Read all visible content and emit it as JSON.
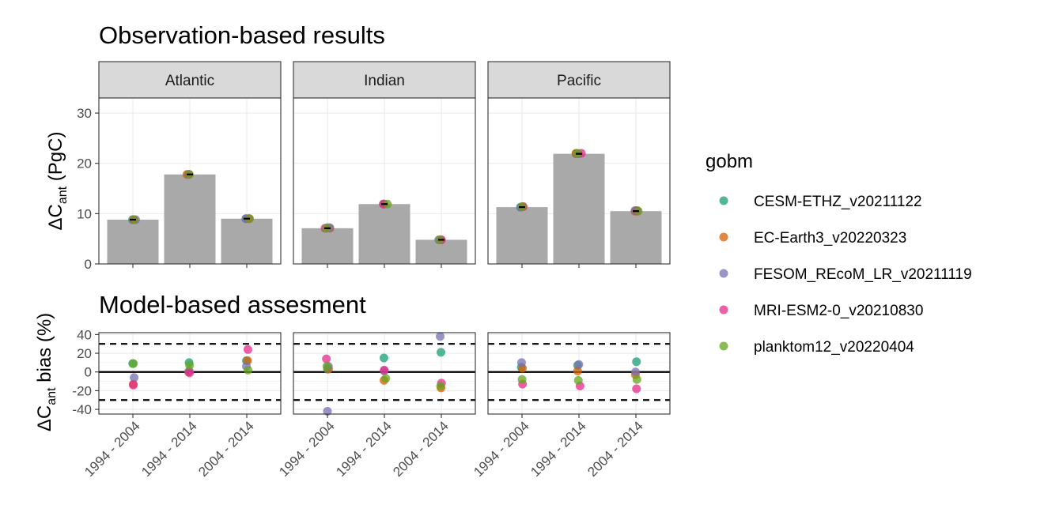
{
  "chart_data": [
    {
      "type": "bar",
      "title": "Observation-based results",
      "ylabel_main": "ΔC",
      "ylabel_sub": "ant",
      "ylabel_rest": " (PgC)",
      "ylim": [
        0,
        33
      ],
      "yticks": [
        0,
        10,
        20,
        30
      ],
      "facets": [
        "Atlantic",
        "Indian",
        "Pacific"
      ],
      "categories": [
        "1994 - 2004",
        "1994 - 2014",
        "2004 - 2014"
      ],
      "values": [
        [
          8.8,
          17.8,
          9.0
        ],
        [
          7.1,
          11.9,
          4.8
        ],
        [
          11.3,
          21.9,
          10.5
        ]
      ],
      "series": [
        {
          "name": "CESM-ETHZ_v20211122",
          "values": [
            [
              8.8,
              17.8,
              9.0
            ],
            [
              7.2,
              11.9,
              4.8
            ],
            [
              11.3,
              21.9,
              10.6
            ]
          ]
        },
        {
          "name": "EC-Earth3_v20220323",
          "values": [
            [
              8.8,
              17.8,
              9.0
            ],
            [
              7.1,
              11.9,
              4.8
            ],
            [
              11.4,
              22.0,
              10.5
            ]
          ]
        },
        {
          "name": "FESOM_REcoM_LR_v20211119",
          "values": [
            [
              8.8,
              17.8,
              9.0
            ],
            [
              7.2,
              11.9,
              4.8
            ],
            [
              11.3,
              21.9,
              10.6
            ]
          ]
        },
        {
          "name": "MRI-ESM2-0_v20210830",
          "values": [
            [
              8.8,
              17.8,
              9.0
            ],
            [
              7.1,
              11.9,
              4.8
            ],
            [
              11.4,
              22.0,
              10.5
            ]
          ]
        },
        {
          "name": "planktom12_v20220404",
          "values": [
            [
              8.8,
              17.8,
              9.0
            ],
            [
              7.1,
              11.9,
              4.8
            ],
            [
              11.4,
              22.0,
              10.5
            ]
          ]
        }
      ]
    },
    {
      "type": "scatter",
      "title": "Model-based assesment",
      "ylabel_main": "ΔC",
      "ylabel_sub": "ant",
      "ylabel_rest": " bias (%)",
      "ylim": [
        -45,
        42
      ],
      "yticks": [
        -40,
        -20,
        0,
        20,
        40
      ],
      "reference_lines": {
        "solid": 0,
        "dashed": [
          30,
          -30
        ]
      },
      "facets": [
        "Atlantic",
        "Indian",
        "Pacific"
      ],
      "categories": [
        "1994 - 2004",
        "1994 - 2014",
        "2004 - 2014"
      ],
      "series": [
        {
          "name": "CESM-ETHZ_v20211122",
          "values": [
            [
              9,
              10,
              12
            ],
            [
              3,
              15,
              21
            ],
            [
              5,
              7,
              11
            ]
          ]
        },
        {
          "name": "EC-Earth3_v20220323",
          "values": [
            [
              -13,
              0,
              12
            ],
            [
              3,
              -9,
              -17
            ],
            [
              4,
              1,
              -3
            ]
          ]
        },
        {
          "name": "FESOM_REcoM_LR_v20211119",
          "values": [
            [
              -6,
              1,
              6
            ],
            [
              6,
              1,
              38
            ],
            [
              10,
              8,
              0
            ]
          ]
        },
        {
          "name": "MRI-ESM2-0_v20210830",
          "values": [
            [
              -14,
              -1,
              24
            ],
            [
              14,
              2,
              -12
            ],
            [
              -13,
              -15,
              -18
            ]
          ]
        },
        {
          "name": "planktom12_v20220404",
          "values": [
            [
              9,
              7,
              2
            ],
            [
              6,
              -7,
              -15
            ],
            [
              -8,
              -9,
              -8
            ]
          ]
        }
      ],
      "outliers": [
        {
          "facet": "Indian",
          "category": "1994 - 2004",
          "series": "FESOM_REcoM_LR_v20211119",
          "value": -42
        }
      ]
    }
  ],
  "legend": {
    "title": "gobm",
    "placement": "right",
    "items": [
      {
        "name": "CESM-ETHZ_v20211122",
        "color": "#1b9e77"
      },
      {
        "name": "EC-Earth3_v20220323",
        "color": "#d95f02"
      },
      {
        "name": "FESOM_REcoM_LR_v20211119",
        "color": "#7570b3"
      },
      {
        "name": "MRI-ESM2-0_v20210830",
        "color": "#e7298a"
      },
      {
        "name": "planktom12_v20220404",
        "color": "#66a61e"
      }
    ]
  },
  "colors": {
    "bar": "#a9a9a9",
    "strip": "#d9d9d9",
    "grid": "#ebebeb",
    "axis_text": "#4d4d4d"
  }
}
